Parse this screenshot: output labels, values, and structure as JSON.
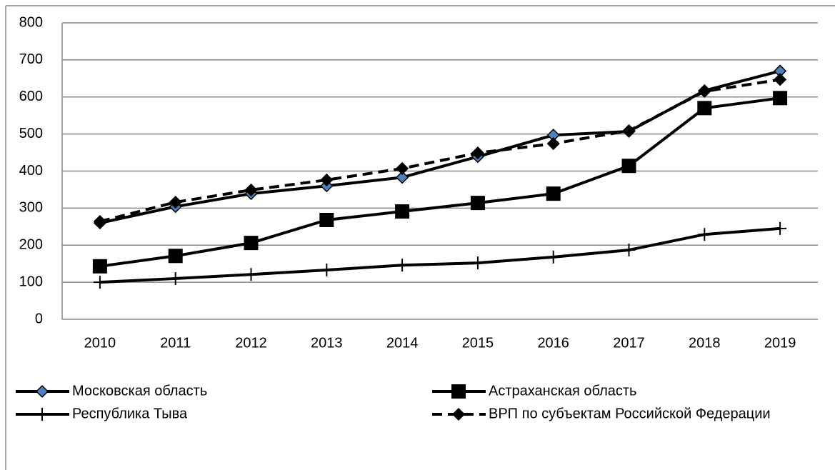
{
  "chart_data": {
    "type": "line",
    "categories": [
      "2010",
      "2011",
      "2012",
      "2013",
      "2014",
      "2015",
      "2016",
      "2017",
      "2018",
      "2019"
    ],
    "series": [
      {
        "name": "Московская область",
        "color": "#000000",
        "marker": "diamond",
        "marker_color": "#4f81bd",
        "dashed": false,
        "values": [
          260,
          304,
          339,
          360,
          383,
          439,
          497,
          507,
          617,
          670
        ]
      },
      {
        "name": "Астраханская область",
        "color": "#000000",
        "marker": "square",
        "marker_color": "#000000",
        "dashed": false,
        "values": [
          143,
          171,
          206,
          268,
          291,
          314,
          339,
          414,
          570,
          597
        ]
      },
      {
        "name": "Республика Тыва",
        "color": "#000000",
        "marker": "plus",
        "marker_color": "#000000",
        "dashed": false,
        "values": [
          100,
          110,
          121,
          133,
          146,
          152,
          168,
          187,
          229,
          245
        ]
      },
      {
        "name": "ВРП по субъектам Российской Федерации",
        "color": "#000000",
        "marker": "diamond",
        "marker_color": "#000000",
        "dashed": true,
        "values": [
          264,
          316,
          349,
          376,
          407,
          449,
          474,
          509,
          615,
          647
        ]
      }
    ],
    "ylim": [
      0,
      800
    ],
    "yticks": [
      0,
      100,
      200,
      300,
      400,
      500,
      600,
      700,
      800
    ],
    "grid": true,
    "legend": "bottom"
  }
}
